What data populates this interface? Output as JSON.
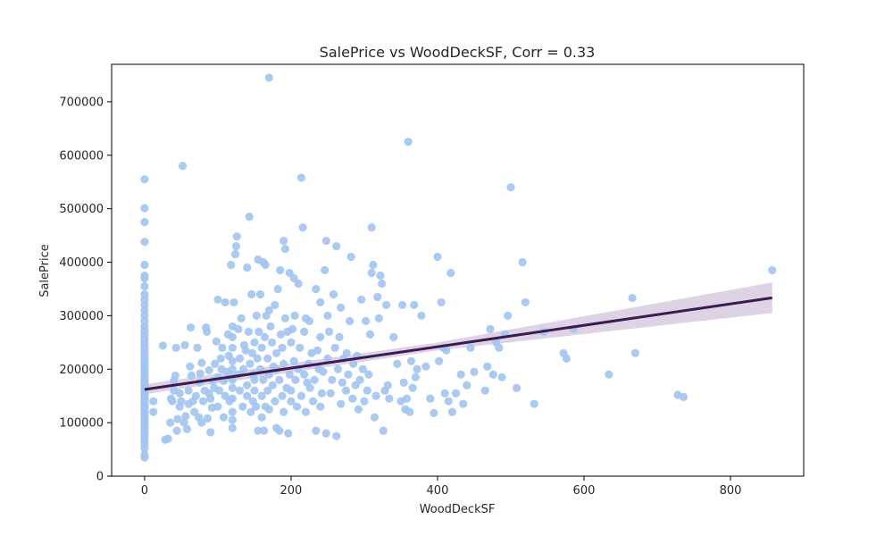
{
  "chart_data": {
    "type": "scatter",
    "title": "SalePrice vs WoodDeckSF, Corr = 0.33",
    "xlabel": "WoodDeckSF",
    "ylabel": "SalePrice",
    "xlim": [
      -45,
      900
    ],
    "ylim": [
      0,
      770000
    ],
    "xticks": [
      0,
      200,
      400,
      600,
      800
    ],
    "yticks": [
      0,
      100000,
      200000,
      300000,
      400000,
      500000,
      600000,
      700000
    ],
    "grid": false,
    "point_color": "#a1c4f1",
    "line_color": "#3b1a4f",
    "band_color": "#d8cbe0",
    "regression": {
      "intercept": 162000,
      "slope": 200,
      "x_range": [
        0,
        857
      ]
    },
    "confidence_band": {
      "x": [
        0,
        400,
        857
      ],
      "lower": [
        153000,
        235000,
        305000
      ],
      "upper": [
        172000,
        250000,
        362000
      ]
    },
    "points": [
      [
        0,
        35000
      ],
      [
        0,
        40000
      ],
      [
        0,
        52000
      ],
      [
        0,
        60000
      ],
      [
        0,
        68000
      ],
      [
        0,
        75000
      ],
      [
        0,
        82000
      ],
      [
        0,
        88000
      ],
      [
        0,
        93000
      ],
      [
        0,
        98000
      ],
      [
        0,
        103000
      ],
      [
        0,
        108000
      ],
      [
        0,
        112000
      ],
      [
        0,
        116000
      ],
      [
        0,
        120000
      ],
      [
        0,
        124000
      ],
      [
        0,
        128000
      ],
      [
        0,
        132000
      ],
      [
        0,
        136000
      ],
      [
        0,
        140000
      ],
      [
        0,
        144000
      ],
      [
        0,
        148000
      ],
      [
        0,
        152000
      ],
      [
        0,
        156000
      ],
      [
        0,
        160000
      ],
      [
        0,
        164000
      ],
      [
        0,
        168000
      ],
      [
        0,
        172000
      ],
      [
        0,
        176000
      ],
      [
        0,
        180000
      ],
      [
        0,
        185000
      ],
      [
        0,
        190000
      ],
      [
        0,
        195000
      ],
      [
        0,
        200000
      ],
      [
        0,
        206000
      ],
      [
        0,
        212000
      ],
      [
        0,
        218000
      ],
      [
        0,
        225000
      ],
      [
        0,
        232000
      ],
      [
        0,
        240000
      ],
      [
        0,
        248000
      ],
      [
        0,
        256000
      ],
      [
        0,
        264000
      ],
      [
        0,
        272000
      ],
      [
        0,
        280000
      ],
      [
        0,
        290000
      ],
      [
        0,
        300000
      ],
      [
        0,
        310000
      ],
      [
        0,
        320000
      ],
      [
        0,
        330000
      ],
      [
        0,
        340000
      ],
      [
        0,
        355000
      ],
      [
        0,
        370000
      ],
      [
        0,
        375000
      ],
      [
        0,
        395000
      ],
      [
        0,
        438000
      ],
      [
        0,
        475000
      ],
      [
        0,
        501000
      ],
      [
        0,
        555000
      ],
      [
        12,
        120000
      ],
      [
        12,
        140000
      ],
      [
        25,
        244000
      ],
      [
        28,
        68000
      ],
      [
        32,
        70000
      ],
      [
        35,
        100000
      ],
      [
        36,
        145000
      ],
      [
        38,
        140000
      ],
      [
        40,
        160000
      ],
      [
        40,
        178000
      ],
      [
        42,
        188000
      ],
      [
        43,
        240000
      ],
      [
        44,
        85000
      ],
      [
        45,
        107000
      ],
      [
        48,
        130000
      ],
      [
        48,
        155000
      ],
      [
        50,
        140000
      ],
      [
        52,
        580000
      ],
      [
        54,
        100000
      ],
      [
        55,
        245000
      ],
      [
        56,
        112000
      ],
      [
        58,
        88000
      ],
      [
        60,
        135000
      ],
      [
        60,
        160000
      ],
      [
        62,
        205000
      ],
      [
        63,
        278000
      ],
      [
        64,
        188000
      ],
      [
        66,
        140000
      ],
      [
        68,
        120000
      ],
      [
        70,
        150000
      ],
      [
        72,
        240000
      ],
      [
        74,
        110000
      ],
      [
        75,
        175000
      ],
      [
        76,
        192000
      ],
      [
        78,
        100000
      ],
      [
        78,
        212000
      ],
      [
        80,
        140000
      ],
      [
        82,
        160000
      ],
      [
        84,
        278000
      ],
      [
        85,
        270000
      ],
      [
        86,
        108000
      ],
      [
        88,
        155000
      ],
      [
        88,
        198000
      ],
      [
        90,
        82000
      ],
      [
        90,
        145000
      ],
      [
        92,
        128000
      ],
      [
        93,
        178000
      ],
      [
        95,
        165000
      ],
      [
        96,
        210000
      ],
      [
        98,
        252000
      ],
      [
        100,
        330000
      ],
      [
        100,
        185000
      ],
      [
        100,
        130000
      ],
      [
        102,
        160000
      ],
      [
        104,
        220000
      ],
      [
        105,
        200000
      ],
      [
        106,
        240000
      ],
      [
        108,
        110000
      ],
      [
        108,
        178000
      ],
      [
        110,
        325000
      ],
      [
        110,
        150000
      ],
      [
        112,
        195000
      ],
      [
        114,
        265000
      ],
      [
        115,
        225000
      ],
      [
        116,
        140000
      ],
      [
        118,
        395000
      ],
      [
        118,
        185000
      ],
      [
        120,
        90000
      ],
      [
        120,
        105000
      ],
      [
        120,
        120000
      ],
      [
        120,
        145000
      ],
      [
        120,
        165000
      ],
      [
        120,
        180000
      ],
      [
        120,
        200000
      ],
      [
        120,
        215000
      ],
      [
        120,
        240000
      ],
      [
        120,
        260000
      ],
      [
        120,
        280000
      ],
      [
        122,
        325000
      ],
      [
        124,
        415000
      ],
      [
        125,
        430000
      ],
      [
        126,
        448000
      ],
      [
        128,
        275000
      ],
      [
        128,
        190000
      ],
      [
        130,
        220000
      ],
      [
        130,
        160000
      ],
      [
        132,
        295000
      ],
      [
        134,
        130000
      ],
      [
        135,
        200000
      ],
      [
        136,
        245000
      ],
      [
        138,
        235000
      ],
      [
        140,
        390000
      ],
      [
        140,
        170000
      ],
      [
        140,
        150000
      ],
      [
        142,
        270000
      ],
      [
        143,
        485000
      ],
      [
        144,
        210000
      ],
      [
        145,
        120000
      ],
      [
        146,
        340000
      ],
      [
        147,
        230000
      ],
      [
        148,
        190000
      ],
      [
        148,
        140000
      ],
      [
        150,
        250000
      ],
      [
        150,
        180000
      ],
      [
        150,
        160000
      ],
      [
        152,
        130000
      ],
      [
        153,
        300000
      ],
      [
        154,
        220000
      ],
      [
        155,
        405000
      ],
      [
        155,
        85000
      ],
      [
        156,
        270000
      ],
      [
        158,
        340000
      ],
      [
        158,
        200000
      ],
      [
        160,
        150000
      ],
      [
        160,
        240000
      ],
      [
        160,
        110000
      ],
      [
        162,
        400000
      ],
      [
        162,
        180000
      ],
      [
        163,
        85000
      ],
      [
        164,
        260000
      ],
      [
        165,
        395000
      ],
      [
        165,
        130000
      ],
      [
        166,
        300000
      ],
      [
        168,
        220000
      ],
      [
        168,
        160000
      ],
      [
        170,
        310000
      ],
      [
        170,
        190000
      ],
      [
        170,
        745000
      ],
      [
        170,
        125000
      ],
      [
        172,
        280000
      ],
      [
        174,
        250000
      ],
      [
        175,
        170000
      ],
      [
        176,
        205000
      ],
      [
        178,
        320000
      ],
      [
        178,
        140000
      ],
      [
        180,
        200000
      ],
      [
        180,
        90000
      ],
      [
        180,
        230000
      ],
      [
        182,
        350000
      ],
      [
        184,
        180000
      ],
      [
        184,
        85000
      ],
      [
        185,
        385000
      ],
      [
        186,
        265000
      ],
      [
        188,
        150000
      ],
      [
        188,
        240000
      ],
      [
        190,
        440000
      ],
      [
        190,
        120000
      ],
      [
        190,
        210000
      ],
      [
        192,
        425000
      ],
      [
        192,
        295000
      ],
      [
        194,
        165000
      ],
      [
        195,
        270000
      ],
      [
        196,
        80000
      ],
      [
        198,
        380000
      ],
      [
        198,
        190000
      ],
      [
        200,
        250000
      ],
      [
        200,
        140000
      ],
      [
        200,
        160000
      ],
      [
        202,
        275000
      ],
      [
        204,
        370000
      ],
      [
        204,
        215000
      ],
      [
        205,
        300000
      ],
      [
        206,
        180000
      ],
      [
        208,
        130000
      ],
      [
        210,
        360000
      ],
      [
        210,
        200000
      ],
      [
        212,
        240000
      ],
      [
        214,
        558000
      ],
      [
        214,
        150000
      ],
      [
        216,
        465000
      ],
      [
        218,
        190000
      ],
      [
        218,
        270000
      ],
      [
        220,
        295000
      ],
      [
        220,
        120000
      ],
      [
        222,
        175000
      ],
      [
        224,
        210000
      ],
      [
        225,
        290000
      ],
      [
        226,
        165000
      ],
      [
        228,
        230000
      ],
      [
        230,
        140000
      ],
      [
        232,
        180000
      ],
      [
        234,
        350000
      ],
      [
        234,
        85000
      ],
      [
        236,
        235000
      ],
      [
        238,
        200000
      ],
      [
        240,
        260000
      ],
      [
        240,
        130000
      ],
      [
        240,
        325000
      ],
      [
        242,
        155000
      ],
      [
        244,
        195000
      ],
      [
        246,
        385000
      ],
      [
        248,
        440000
      ],
      [
        248,
        80000
      ],
      [
        250,
        300000
      ],
      [
        250,
        220000
      ],
      [
        252,
        270000
      ],
      [
        254,
        155000
      ],
      [
        256,
        180000
      ],
      [
        258,
        340000
      ],
      [
        260,
        240000
      ],
      [
        262,
        430000
      ],
      [
        262,
        75000
      ],
      [
        264,
        200000
      ],
      [
        266,
        260000
      ],
      [
        268,
        315000
      ],
      [
        268,
        135000
      ],
      [
        270,
        175000
      ],
      [
        272,
        220000
      ],
      [
        275,
        160000
      ],
      [
        276,
        230000
      ],
      [
        278,
        190000
      ],
      [
        280,
        290000
      ],
      [
        282,
        410000
      ],
      [
        284,
        145000
      ],
      [
        285,
        210000
      ],
      [
        288,
        170000
      ],
      [
        290,
        225000
      ],
      [
        292,
        125000
      ],
      [
        294,
        180000
      ],
      [
        296,
        330000
      ],
      [
        298,
        200000
      ],
      [
        300,
        140000
      ],
      [
        302,
        290000
      ],
      [
        304,
        160000
      ],
      [
        306,
        190000
      ],
      [
        308,
        265000
      ],
      [
        310,
        465000
      ],
      [
        310,
        380000
      ],
      [
        312,
        395000
      ],
      [
        314,
        110000
      ],
      [
        316,
        150000
      ],
      [
        318,
        335000
      ],
      [
        320,
        295000
      ],
      [
        322,
        375000
      ],
      [
        324,
        360000
      ],
      [
        326,
        85000
      ],
      [
        328,
        160000
      ],
      [
        330,
        320000
      ],
      [
        332,
        170000
      ],
      [
        334,
        145000
      ],
      [
        340,
        260000
      ],
      [
        345,
        210000
      ],
      [
        350,
        140000
      ],
      [
        352,
        320000
      ],
      [
        354,
        175000
      ],
      [
        356,
        125000
      ],
      [
        358,
        145000
      ],
      [
        360,
        625000
      ],
      [
        362,
        120000
      ],
      [
        364,
        215000
      ],
      [
        366,
        165000
      ],
      [
        368,
        320000
      ],
      [
        370,
        185000
      ],
      [
        372,
        200000
      ],
      [
        378,
        300000
      ],
      [
        384,
        205000
      ],
      [
        390,
        145000
      ],
      [
        395,
        118000
      ],
      [
        400,
        410000
      ],
      [
        402,
        215000
      ],
      [
        405,
        325000
      ],
      [
        408,
        240000
      ],
      [
        410,
        155000
      ],
      [
        412,
        235000
      ],
      [
        415,
        140000
      ],
      [
        418,
        380000
      ],
      [
        420,
        120000
      ],
      [
        425,
        155000
      ],
      [
        432,
        190000
      ],
      [
        435,
        135000
      ],
      [
        440,
        170000
      ],
      [
        445,
        240000
      ],
      [
        450,
        195000
      ],
      [
        465,
        160000
      ],
      [
        468,
        205000
      ],
      [
        472,
        275000
      ],
      [
        476,
        190000
      ],
      [
        480,
        250000
      ],
      [
        484,
        240000
      ],
      [
        488,
        185000
      ],
      [
        492,
        265000
      ],
      [
        496,
        300000
      ],
      [
        500,
        540000
      ],
      [
        508,
        165000
      ],
      [
        516,
        400000
      ],
      [
        520,
        325000
      ],
      [
        532,
        135000
      ],
      [
        545,
        270000
      ],
      [
        572,
        230000
      ],
      [
        576,
        220000
      ],
      [
        586,
        275000
      ],
      [
        634,
        190000
      ],
      [
        666,
        333000
      ],
      [
        670,
        230000
      ],
      [
        728,
        152000
      ],
      [
        736,
        148000
      ],
      [
        857,
        385000
      ]
    ]
  }
}
